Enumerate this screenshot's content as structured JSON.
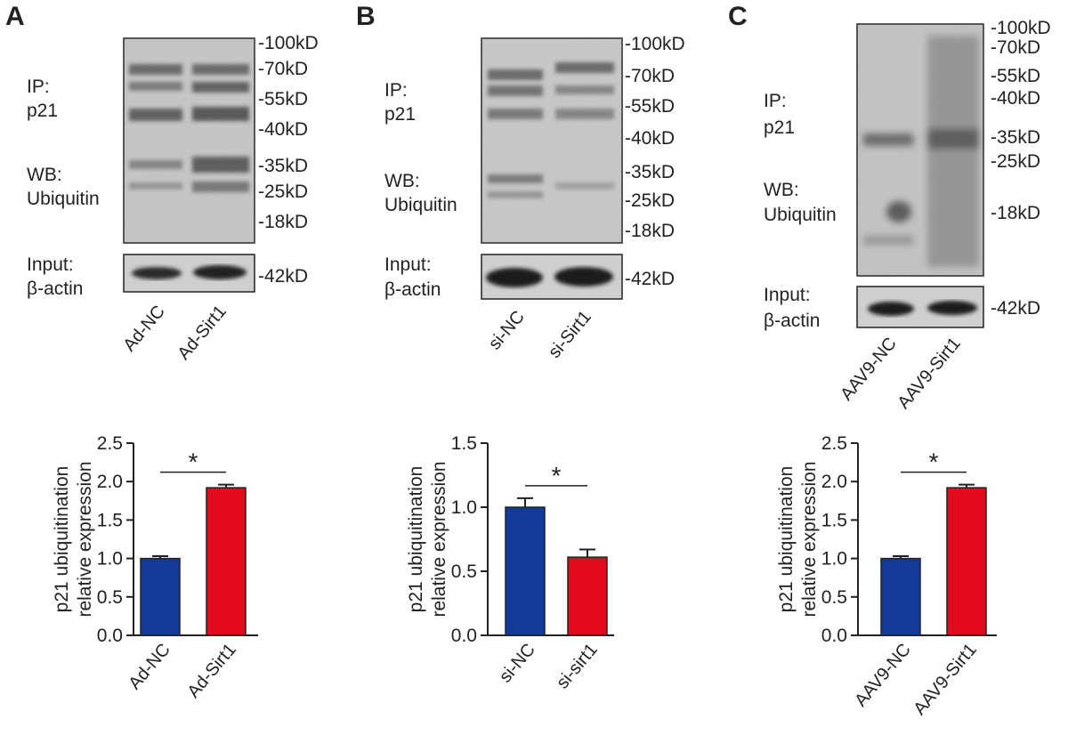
{
  "panels": [
    {
      "letter": "A",
      "ip_label": [
        "IP:",
        "p21"
      ],
      "wb_label": [
        "WB:",
        "Ubiquitin"
      ],
      "input_label": [
        "Input:",
        "β-actin"
      ],
      "markers": [
        "-100kD",
        "-70kD",
        "-55kD",
        "-40kD",
        "-35kD",
        "-25kD",
        "-18kD"
      ],
      "input_marker": "-42kD",
      "lanes": [
        "Ad-NC",
        "Ad-Sirt1"
      ]
    },
    {
      "letter": "B",
      "ip_label": [
        "IP:",
        "p21"
      ],
      "wb_label": [
        "WB:",
        "Ubiquitin"
      ],
      "input_label": [
        "Input:",
        "β-actin"
      ],
      "markers": [
        "-100kD",
        "-70kD",
        "-55kD",
        "-40kD",
        "-35kD",
        "-25kD",
        "-18kD"
      ],
      "input_marker": "-42kD",
      "lanes": [
        "si-NC",
        "si-Sirt1"
      ]
    },
    {
      "letter": "C",
      "ip_label": [
        "IP:",
        "p21"
      ],
      "wb_label": [
        "WB:",
        "Ubiquitin"
      ],
      "input_label": [
        "Input:",
        "β-actin"
      ],
      "markers": [
        "-100kD",
        "-70kD",
        "-55kD",
        "-40kD",
        "-35kD",
        "-25kD",
        "-18kD"
      ],
      "input_marker": "-42kD",
      "lanes": [
        "AAV9-NC",
        "AAV9-Sirt1"
      ]
    }
  ],
  "chart_data": [
    {
      "type": "bar",
      "ylabel": [
        "p21 ubiquitination",
        "relative expression"
      ],
      "categories": [
        "Ad-NC",
        "Ad-Sirt1"
      ],
      "values": [
        1.0,
        1.92
      ],
      "errors": [
        0.03,
        0.04
      ],
      "colors": [
        "#13399a",
        "#e30b1b"
      ],
      "ylim": [
        0,
        2.5
      ],
      "yticks": [
        "0.0",
        "0.5",
        "1.0",
        "1.5",
        "2.0",
        "2.5"
      ],
      "significance": "*"
    },
    {
      "type": "bar",
      "ylabel": [
        "p21 ubiquitination",
        "relative expression"
      ],
      "categories": [
        "si-NC",
        "si-sirt1"
      ],
      "values": [
        1.0,
        0.61
      ],
      "errors": [
        0.07,
        0.06
      ],
      "colors": [
        "#13399a",
        "#e30b1b"
      ],
      "ylim": [
        0,
        1.5
      ],
      "yticks": [
        "0.0",
        "0.5",
        "1.0",
        "1.5"
      ],
      "significance": "*"
    },
    {
      "type": "bar",
      "ylabel": [
        "p21 ubiquitination",
        "relative expression"
      ],
      "categories": [
        "AAV9-NC",
        "AAV9-Sirt1"
      ],
      "values": [
        1.0,
        1.92
      ],
      "errors": [
        0.03,
        0.04
      ],
      "colors": [
        "#13399a",
        "#e30b1b"
      ],
      "ylim": [
        0,
        2.5
      ],
      "yticks": [
        "0.0",
        "0.5",
        "1.0",
        "1.5",
        "2.0",
        "2.5"
      ],
      "significance": "*"
    }
  ]
}
